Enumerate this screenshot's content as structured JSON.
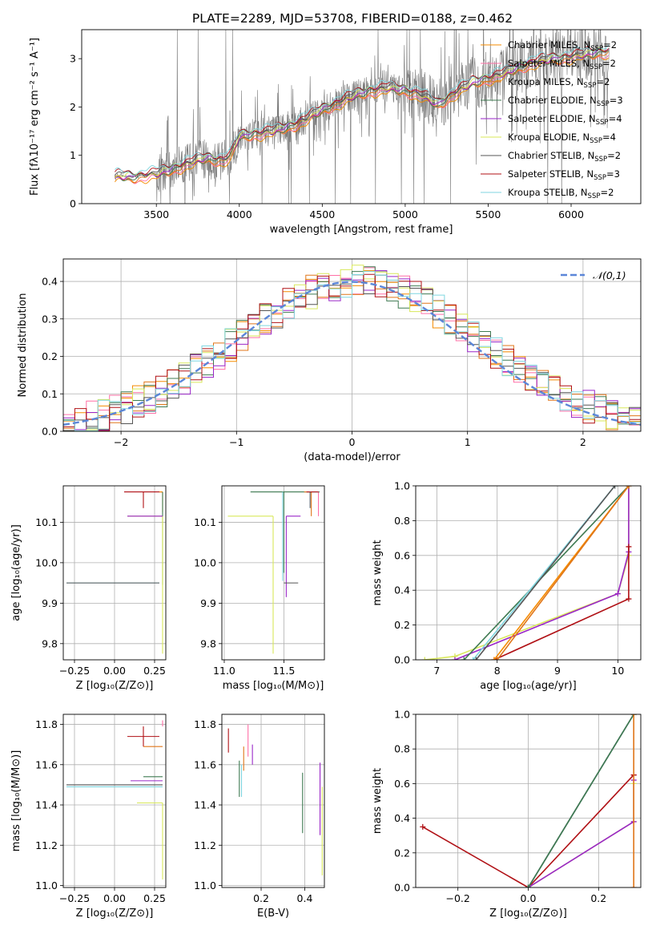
{
  "colors": {
    "Chabrier MILES": "#f58b00",
    "Salpeter MILES": "#ff6fa6",
    "Kroupa MILES": "#e0761a",
    "Chabrier ELODIE": "#3f7a52",
    "Salpeter ELODIE": "#9a26c8",
    "Kroupa ELODIE": "#d8e85a",
    "Chabrier STELIB": "#555555",
    "Salpeter STELIB": "#b01015",
    "Kroupa STELIB": "#7fd6e0",
    "data": "#777777",
    "normal": "#5b86d8"
  },
  "chart_data": [
    {
      "id": "spectrum",
      "type": "line",
      "title": "PLATE=2289, MJD=53708, FIBERID=0188, z=0.462",
      "xlabel": "wavelength [Angstrom, rest frame]",
      "ylabel": "Flux [fλ10⁻¹⁷ erg cm⁻² s⁻¹ A⁻¹]",
      "xlim": [
        3050,
        6420
      ],
      "ylim": [
        0,
        3.6
      ],
      "xticks": [
        3500,
        4000,
        4500,
        5000,
        5500,
        6000
      ],
      "yticks": [
        0,
        1,
        2,
        3
      ],
      "legend": "upper-right",
      "series": [
        {
          "name": "Chabrier MILES, N_SSP=2",
          "key": "Chabrier MILES"
        },
        {
          "name": "Salpeter MILES, N_SSP=2",
          "key": "Salpeter MILES"
        },
        {
          "name": "Kroupa MILES, N_SSP=2",
          "key": "Kroupa MILES"
        },
        {
          "name": "Chabrier ELODIE, N_SSP=3",
          "key": "Chabrier ELODIE"
        },
        {
          "name": "Salpeter ELODIE, N_SSP=4",
          "key": "Salpeter ELODIE"
        },
        {
          "name": "Kroupa ELODIE, N_SSP=4",
          "key": "Kroupa ELODIE"
        },
        {
          "name": "Chabrier STELIB, N_SSP=2",
          "key": "Chabrier STELIB"
        },
        {
          "name": "Salpeter STELIB, N_SSP=3",
          "key": "Salpeter STELIB"
        },
        {
          "name": "Kroupa STELIB, N_SSP=2",
          "key": "Kroupa STELIB"
        }
      ],
      "continuum": {
        "x": [
          3250,
          3280,
          3350,
          3450,
          3500,
          3600,
          3700,
          3800,
          3900,
          3950,
          4000,
          4100,
          4200,
          4300,
          4400,
          4500,
          4600,
          4700,
          4800,
          4900,
          5000,
          5100,
          5200,
          5300,
          5400,
          5500,
          5600,
          5700,
          5800,
          5900,
          6000,
          6100,
          6200
        ],
        "y": [
          0.55,
          0.58,
          0.55,
          0.6,
          0.62,
          0.72,
          0.85,
          0.95,
          0.9,
          1.0,
          1.4,
          1.45,
          1.5,
          1.6,
          1.75,
          1.95,
          2.1,
          2.25,
          2.35,
          2.4,
          2.35,
          2.25,
          2.05,
          2.3,
          2.5,
          2.6,
          2.7,
          2.85,
          2.95,
          3.0,
          3.05,
          3.1,
          3.15
        ]
      }
    },
    {
      "id": "residuals",
      "type": "bar",
      "xlabel": "(data-model)/error",
      "ylabel": "Normed distribution",
      "xlim": [
        -2.5,
        2.5
      ],
      "ylim": [
        0,
        0.46
      ],
      "xticks": [
        -2,
        -1,
        0,
        1,
        2
      ],
      "yticks": [
        0.0,
        0.1,
        0.2,
        0.3,
        0.4
      ],
      "legend": "upper-right",
      "normal_label": "𝒩(0,1)",
      "bin_width": 0.1
    },
    {
      "id": "age-Z",
      "type": "scatter",
      "xlabel": "Z [log₁₀(Z/Z⊙)]",
      "ylabel": "age  [log₁₀(age/yr)]",
      "xlim": [
        -0.32,
        0.32
      ],
      "ylim": [
        9.76,
        10.19
      ],
      "xticks": [
        -0.25,
        0.0,
        0.25
      ],
      "yticks": [
        9.8,
        9.9,
        10.0,
        10.1
      ],
      "points": [
        {
          "key": "Salpeter STELIB",
          "x": 0.18,
          "y": 10.175,
          "xerr": [
            0.12,
            0.12
          ],
          "yerr": [
            0.04,
            0.0
          ]
        },
        {
          "key": "Chabrier MILES",
          "x": 0.3,
          "y": 10.175,
          "xerr": [
            0.02,
            0.0
          ],
          "yerr": [
            0.05,
            0.0
          ]
        },
        {
          "key": "Chabrier ELODIE",
          "x": 0.3,
          "y": 10.175,
          "xerr": [
            0.0,
            0.0
          ],
          "yerr": [
            0.23,
            0.0
          ]
        },
        {
          "key": "Kroupa ELODIE",
          "x": 0.3,
          "y": 10.115,
          "xerr": [
            0.22,
            0.0
          ],
          "yerr": [
            0.34,
            0.0
          ]
        },
        {
          "key": "Salpeter ELODIE",
          "x": 0.3,
          "y": 10.115,
          "xerr": [
            0.22,
            0.0
          ],
          "yerr": [
            0.0,
            0.0
          ]
        },
        {
          "key": "Kroupa STELIB",
          "x": 0.28,
          "y": 9.95,
          "xerr": [
            0.58,
            0.0
          ],
          "yerr": [
            0.0,
            0.0
          ]
        },
        {
          "key": "Chabrier STELIB",
          "x": 0.28,
          "y": 9.95,
          "xerr": [
            0.58,
            0.0
          ],
          "yerr": [
            0.0,
            0.0
          ]
        }
      ]
    },
    {
      "id": "age-mass",
      "type": "scatter",
      "xlabel": "mass [log₁₀(M/M⊙)]",
      "ylabel": "",
      "xlim": [
        10.98,
        11.84
      ],
      "ylim": [
        9.76,
        10.19
      ],
      "xticks": [
        11.0,
        11.5
      ],
      "yticks": [
        9.8,
        9.9,
        10.0,
        10.1
      ],
      "points": [
        {
          "key": "Chabrier ELODIE",
          "x": 11.5,
          "y": 10.175,
          "xerr": [
            0.28,
            0.3
          ],
          "yerr": [
            0.2,
            0.0
          ]
        },
        {
          "key": "Salpeter MILES",
          "x": 11.79,
          "y": 10.175,
          "xerr": [
            0.0,
            0.0
          ],
          "yerr": [
            0.06,
            0.0
          ]
        },
        {
          "key": "Kroupa MILES",
          "x": 11.73,
          "y": 10.175,
          "xerr": [
            0.06,
            0.0
          ],
          "yerr": [
            0.06,
            0.0
          ]
        },
        {
          "key": "Salpeter STELIB",
          "x": 11.74,
          "y": 10.175,
          "xerr": [
            0.05,
            0.05
          ],
          "yerr": [
            0.0,
            0.0
          ]
        },
        {
          "key": "Chabrier STELIB",
          "x": 11.72,
          "y": 10.175,
          "xerr": [
            0.0,
            0.0
          ],
          "yerr": [
            0.04,
            0.0
          ]
        },
        {
          "key": "Kroupa ELODIE",
          "x": 11.41,
          "y": 10.115,
          "xerr": [
            0.38,
            0.0
          ],
          "yerr": [
            0.34,
            0.0
          ]
        },
        {
          "key": "Salpeter ELODIE",
          "x": 11.52,
          "y": 10.115,
          "xerr": [
            0.0,
            0.12
          ],
          "yerr": [
            0.2,
            0.0
          ]
        },
        {
          "key": "Kroupa STELIB",
          "x": 11.49,
          "y": 10.175,
          "xerr": [
            0.0,
            0.0
          ],
          "yerr": [
            0.22,
            0.0
          ]
        },
        {
          "key": "Chabrier STELIB",
          "x": 11.5,
          "y": 9.95,
          "xerr": [
            0.0,
            0.12
          ],
          "yerr": [
            0.0,
            0.0
          ]
        }
      ]
    },
    {
      "id": "cumulative-age",
      "type": "line",
      "xlabel": "age  [log₁₀(age/yr)]",
      "ylabel": "mass weight",
      "xlim": [
        6.65,
        10.38
      ],
      "ylim": [
        0,
        1.0
      ],
      "xticks": [
        7,
        8,
        9,
        10
      ],
      "yticks": [
        0.0,
        0.2,
        0.4,
        0.6,
        0.8,
        1.0
      ],
      "series": [
        {
          "key": "Kroupa ELODIE",
          "x": [
            6.8,
            7.3,
            10.0,
            10.18,
            10.18
          ],
          "y": [
            0.0,
            0.02,
            0.38,
            0.6,
            1.0
          ]
        },
        {
          "key": "Salpeter ELODIE",
          "x": [
            7.3,
            10.0,
            10.18,
            10.18
          ],
          "y": [
            0.0,
            0.38,
            0.62,
            1.0
          ]
        },
        {
          "key": "Salpeter STELIB",
          "x": [
            7.95,
            10.18,
            10.18
          ],
          "y": [
            0.0,
            0.35,
            0.65
          ]
        },
        {
          "key": "Chabrier ELODIE",
          "x": [
            7.45,
            10.18
          ],
          "y": [
            0.0,
            1.0
          ]
        },
        {
          "key": "Kroupa STELIB",
          "x": [
            7.6,
            9.95
          ],
          "y": [
            0.0,
            1.0
          ]
        },
        {
          "key": "Chabrier STELIB",
          "x": [
            7.65,
            9.95
          ],
          "y": [
            0.0,
            1.0
          ]
        },
        {
          "key": "Chabrier MILES",
          "x": [
            7.95,
            10.18
          ],
          "y": [
            0.0,
            1.0
          ]
        },
        {
          "key": "Kroupa MILES",
          "x": [
            8.0,
            10.18
          ],
          "y": [
            0.0,
            1.0
          ]
        }
      ]
    },
    {
      "id": "mass-Z",
      "type": "scatter",
      "xlabel": "Z [log₁₀(Z/Z⊙)]",
      "ylabel": "mass [log₁₀(M/M⊙)]",
      "xlim": [
        -0.32,
        0.32
      ],
      "ylim": [
        10.99,
        11.85
      ],
      "xticks": [
        -0.25,
        0.0,
        0.25
      ],
      "yticks": [
        11.0,
        11.2,
        11.4,
        11.6,
        11.8
      ],
      "points": [
        {
          "key": "Salpeter STELIB",
          "x": 0.18,
          "y": 11.74,
          "xerr": [
            0.1,
            0.1
          ],
          "yerr": [
            0.05,
            0.05
          ]
        },
        {
          "key": "Kroupa MILES",
          "x": 0.3,
          "y": 11.69,
          "xerr": [
            0.12,
            0.0
          ],
          "yerr": [
            0.0,
            0.0
          ]
        },
        {
          "key": "Salpeter MILES",
          "x": 0.3,
          "y": 11.79,
          "xerr": [
            0.0,
            0.0
          ],
          "yerr": [
            0.0,
            0.03
          ]
        },
        {
          "key": "Chabrier ELODIE",
          "x": 0.3,
          "y": 11.54,
          "xerr": [
            0.12,
            0.0
          ],
          "yerr": [
            0.0,
            0.0
          ]
        },
        {
          "key": "Salpeter ELODIE",
          "x": 0.3,
          "y": 11.52,
          "xerr": [
            0.2,
            0.0
          ],
          "yerr": [
            0.0,
            0.0
          ]
        },
        {
          "key": "Kroupa ELODIE",
          "x": 0.3,
          "y": 11.41,
          "xerr": [
            0.16,
            0.0
          ],
          "yerr": [
            0.38,
            0.0
          ]
        },
        {
          "key": "Chabrier STELIB",
          "x": 0.3,
          "y": 11.5,
          "xerr": [
            0.6,
            0.0
          ],
          "yerr": [
            0.0,
            0.0
          ]
        },
        {
          "key": "Kroupa STELIB",
          "x": 0.3,
          "y": 11.49,
          "xerr": [
            0.6,
            0.0
          ],
          "yerr": [
            0.0,
            0.0
          ]
        }
      ]
    },
    {
      "id": "mass-EBV",
      "type": "scatter",
      "xlabel": "E(B-V)",
      "ylabel": "",
      "xlim": [
        0.02,
        0.49
      ],
      "ylim": [
        10.99,
        11.85
      ],
      "xticks": [
        0.2,
        0.4
      ],
      "yticks": [
        11.0,
        11.2,
        11.4,
        11.6,
        11.8
      ],
      "points": [
        {
          "key": "Salpeter STELIB",
          "x": 0.05,
          "y": 11.72,
          "xerr": [
            0.0,
            0.0
          ],
          "yerr": [
            0.06,
            0.06
          ]
        },
        {
          "key": "Kroupa MILES",
          "x": 0.12,
          "y": 11.63,
          "xerr": [
            0.0,
            0.0
          ],
          "yerr": [
            0.06,
            0.06
          ]
        },
        {
          "key": "Chabrier ELODIE",
          "x": 0.1,
          "y": 11.53,
          "xerr": [
            0.0,
            0.0
          ],
          "yerr": [
            0.09,
            0.09
          ]
        },
        {
          "key": "Kroupa STELIB",
          "x": 0.11,
          "y": 11.52,
          "xerr": [
            0.0,
            0.0
          ],
          "yerr": [
            0.08,
            0.08
          ]
        },
        {
          "key": "Salpeter MILES",
          "x": 0.14,
          "y": 11.72,
          "xerr": [
            0.0,
            0.0
          ],
          "yerr": [
            0.08,
            0.08
          ]
        },
        {
          "key": "Salpeter ELODIE",
          "x": 0.16,
          "y": 11.65,
          "xerr": [
            0.0,
            0.0
          ],
          "yerr": [
            0.05,
            0.05
          ]
        },
        {
          "key": "Chabrier ELODIE",
          "x": 0.39,
          "y": 11.41,
          "xerr": [
            0.0,
            0.0
          ],
          "yerr": [
            0.15,
            0.15
          ]
        },
        {
          "key": "Salpeter ELODIE",
          "x": 0.47,
          "y": 11.43,
          "xerr": [
            0.0,
            0.0
          ],
          "yerr": [
            0.18,
            0.18
          ]
        },
        {
          "key": "Kroupa ELODIE",
          "x": 0.48,
          "y": 11.27,
          "xerr": [
            0.0,
            0.0
          ],
          "yerr": [
            0.22,
            0.22
          ]
        }
      ]
    },
    {
      "id": "cumulative-Z",
      "type": "line",
      "xlabel": "Z [log₁₀(Z/Z⊙)]",
      "ylabel": "mass weight",
      "xlim": [
        -0.32,
        0.32
      ],
      "ylim": [
        0,
        1.0
      ],
      "xticks": [
        -0.2,
        0.0,
        0.2
      ],
      "yticks": [
        0.0,
        0.2,
        0.4,
        0.6,
        0.8,
        1.0
      ],
      "series": [
        {
          "key": "Salpeter STELIB",
          "x": [
            -0.3,
            0.0,
            0.3,
            0.3
          ],
          "y": [
            0.35,
            0.0,
            0.65,
            0.65
          ]
        },
        {
          "key": "Kroupa ELODIE",
          "x": [
            0.0,
            0.3,
            0.3
          ],
          "y": [
            0.0,
            0.38,
            0.6
          ]
        },
        {
          "key": "Salpeter ELODIE",
          "x": [
            0.0,
            0.3,
            0.3
          ],
          "y": [
            0.0,
            0.38,
            0.62
          ]
        },
        {
          "key": "Kroupa STELIB",
          "x": [
            0.0,
            0.3
          ],
          "y": [
            0.0,
            1.0
          ]
        },
        {
          "key": "Chabrier STELIB",
          "x": [
            0.0,
            0.3
          ],
          "y": [
            0.0,
            1.0
          ]
        },
        {
          "key": "Chabrier ELODIE",
          "x": [
            0.0,
            0.3
          ],
          "y": [
            0.0,
            1.0
          ]
        },
        {
          "key": "Kroupa MILES",
          "x": [
            0.3,
            0.3
          ],
          "y": [
            0.0,
            1.0
          ]
        }
      ]
    }
  ]
}
